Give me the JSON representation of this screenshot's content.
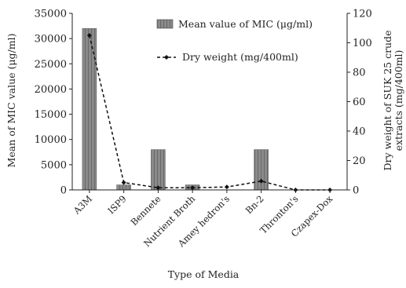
{
  "chart_data": {
    "type": "bar",
    "categories": [
      "A3M",
      "ISP9",
      "Bennete",
      "Nutrient Broth",
      "Amey hedron's",
      "Bn-2",
      "Thronton's",
      "Czapex-Dox"
    ],
    "series": [
      {
        "name": "Mean value of  MIC (μg/ml)",
        "type": "bar",
        "axis": "left",
        "values": [
          32000,
          1000,
          8000,
          1000,
          0,
          8000,
          0,
          0
        ],
        "color": "#777777"
      },
      {
        "name": "Dry weight (mg/400ml)",
        "type": "line",
        "axis": "right",
        "values": [
          105,
          5,
          1.5,
          1.5,
          2,
          6,
          0,
          0
        ],
        "color": "#111111",
        "style": "dashed",
        "marker": "diamond"
      }
    ],
    "xlabel": "Type of Media",
    "ylabel_left": "Mean of MIC value (μg/ml)",
    "ylabel_right": "Dry weight of SUK 25 crude extracts (mg/400ml)",
    "ylim_left": [
      0,
      35000
    ],
    "yticks_left": [
      "0",
      "5000",
      "10000",
      "15000",
      "20000",
      "25000",
      "30000",
      "35000"
    ],
    "ylim_right": [
      0,
      120
    ],
    "yticks_right": [
      "0",
      "20",
      "40",
      "60",
      "80",
      "100",
      "120"
    ],
    "grid": false,
    "legend_position": "top-right"
  }
}
